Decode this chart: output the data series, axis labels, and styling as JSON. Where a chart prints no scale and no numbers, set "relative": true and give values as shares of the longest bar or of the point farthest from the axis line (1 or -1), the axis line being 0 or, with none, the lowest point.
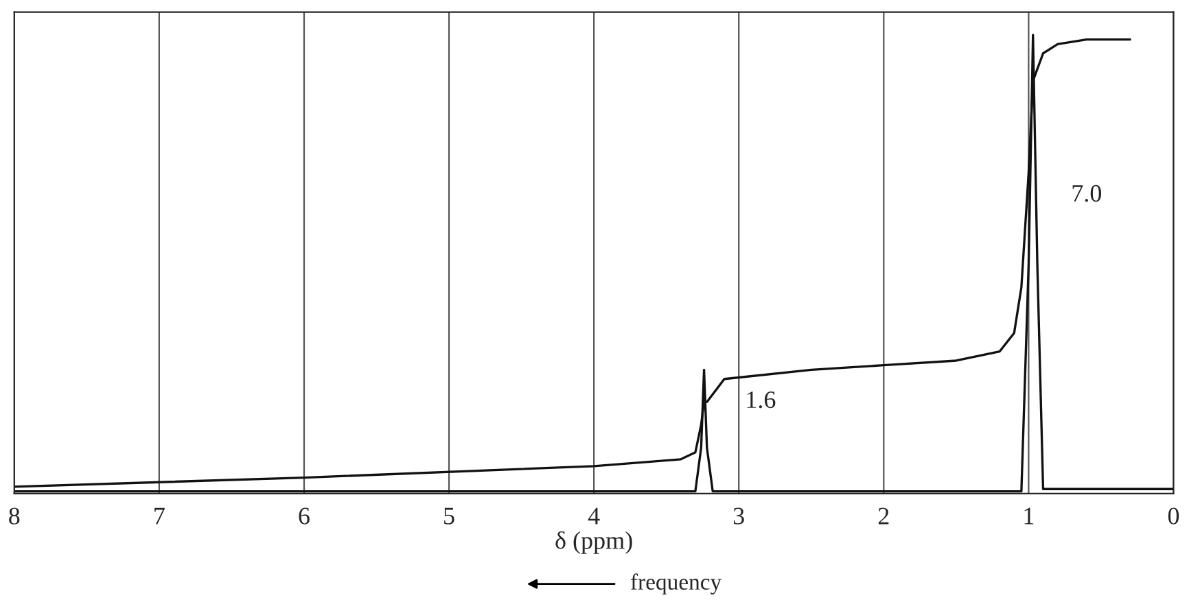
{
  "chart_data": {
    "type": "line",
    "relative": true,
    "xlabel": "δ (ppm)",
    "xlim": [
      8,
      0
    ],
    "xticks": [
      8,
      7,
      6,
      5,
      4,
      3,
      2,
      1,
      0
    ],
    "grid": "x",
    "legend": false,
    "tick_labels": "x",
    "line_style": "solid",
    "marker": "none",
    "series": [
      {
        "color": "#111111",
        "x": [
          8.0,
          6.0,
          4.0,
          3.4,
          3.3,
          3.26,
          3.24,
          3.22,
          3.1,
          2.5,
          2.0,
          1.5,
          1.2,
          1.1,
          1.05,
          1.0,
          0.97,
          0.9,
          0.8,
          0.6,
          0.3
        ],
        "values": [
          0.015,
          0.035,
          0.06,
          0.075,
          0.09,
          0.15,
          0.2,
          0.2,
          0.25,
          0.27,
          0.28,
          0.29,
          0.31,
          0.35,
          0.45,
          0.7,
          0.9,
          0.96,
          0.98,
          0.99,
          0.99
        ]
      },
      {
        "color": "#111111",
        "x": [
          8.0,
          3.3,
          3.26,
          3.24,
          3.22,
          3.18,
          1.05,
          1.0,
          0.97,
          0.94,
          0.9,
          0.0
        ],
        "values": [
          0.005,
          0.005,
          0.1,
          0.27,
          0.1,
          0.005,
          0.005,
          0.5,
          1.0,
          0.5,
          0.01,
          0.01
        ]
      }
    ],
    "annotations": [
      {
        "text": "7.0",
        "x": 0.6,
        "y": 0.65
      },
      {
        "text": "1.6",
        "x": 2.85,
        "y": 0.2
      },
      "frequency"
    ]
  }
}
